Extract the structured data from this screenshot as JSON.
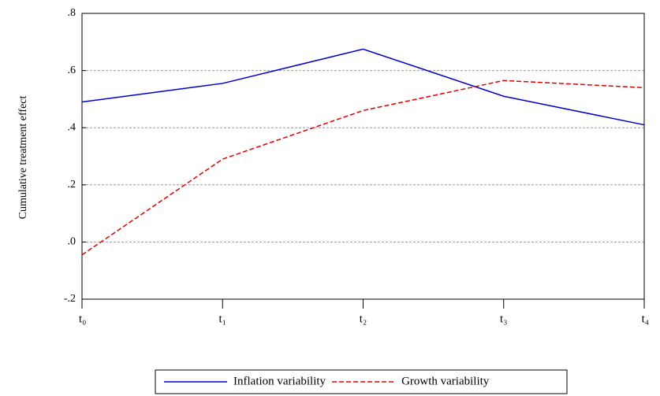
{
  "chart_data": {
    "type": "line",
    "y_axis_label": "Cumulative treatment effect",
    "categories": [
      "t₀",
      "t₁",
      "t₂",
      "t₃",
      "t₄"
    ],
    "series": [
      {
        "name": "Inflation variability",
        "color": "#0000cc",
        "dash": "solid",
        "values": [
          0.49,
          0.555,
          0.675,
          0.51,
          0.41
        ]
      },
      {
        "name": "Growth variability",
        "color": "#e00000",
        "dash": "dashed",
        "values": [
          -0.045,
          0.29,
          0.46,
          0.565,
          0.54
        ]
      }
    ],
    "ylim": [
      -0.2,
      0.8
    ],
    "yticks": [
      {
        "value": -0.2,
        "label": "-.2"
      },
      {
        "value": 0.0,
        "label": ".0"
      },
      {
        "value": 0.2,
        "label": ".2"
      },
      {
        "value": 0.4,
        "label": ".4"
      },
      {
        "value": 0.6,
        "label": ".6"
      },
      {
        "value": 0.8,
        "label": ".8"
      }
    ],
    "grid": true,
    "legend": "bottom"
  }
}
